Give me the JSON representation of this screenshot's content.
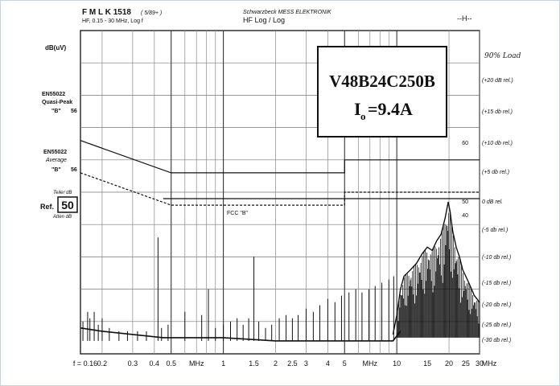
{
  "chart_data": {
    "type": "line",
    "header": {
      "instrument": "F M L K  1518",
      "instrument_note": "( 5/89+ )",
      "range": "HF, 0.15 - 30 MHz, Log f",
      "maker": "Schwarzbeck MESS ELEKTRONIK",
      "mode": "HF Log / Log",
      "corner": "--H--"
    },
    "ylabel": "dB(uV)",
    "title_box": {
      "part": "V48B24C250B",
      "current_prefix": "I",
      "current_sub": "o",
      "current_value": "=9.4A"
    },
    "handwritten_note": "90% Load",
    "ref": {
      "top": "Teiler dB",
      "label": "Ref.",
      "value": "50",
      "bottom": "Atten dB"
    },
    "limit_labels": {
      "qp": [
        "EN55022",
        "Quasi-Peak",
        "\"B\""
      ],
      "qp_value": "56",
      "avg": [
        "EN55022",
        "Average",
        "\"B\""
      ],
      "avg_value": "56",
      "fcc": "FCC \"B\""
    },
    "right_markers": [
      "60",
      "50",
      "40"
    ],
    "right_scale": [
      "(+20 dB rel.)",
      "(+15 db rel.)",
      "(+10 db rel.)",
      "(+5 db rel.)",
      "0 dB rel.",
      "(-5 db rel.)",
      "(-10 db rel.)",
      "(-15 db rel.)",
      "(-20 db rel.)",
      "(-25 db rel.)",
      "(-30 db rel.)"
    ],
    "x_ticks": [
      {
        "f": 0.16,
        "label": "f = 0.16"
      },
      {
        "f": 0.2,
        "label": "0.2"
      },
      {
        "f": 0.3,
        "label": "0.3"
      },
      {
        "f": 0.4,
        "label": "0.4"
      },
      {
        "f": 0.5,
        "label": "0.5"
      },
      {
        "f": 1,
        "label": "1"
      },
      {
        "f": 1.5,
        "label": "1.5"
      },
      {
        "f": 2,
        "label": "2"
      },
      {
        "f": 2.5,
        "label": "2.5"
      },
      {
        "f": 3,
        "label": "3"
      },
      {
        "f": 4,
        "label": "4"
      },
      {
        "f": 5,
        "label": "5"
      },
      {
        "f": 10,
        "label": "10"
      },
      {
        "f": 15,
        "label": "15"
      },
      {
        "f": 20,
        "label": "20"
      },
      {
        "f": 25,
        "label": "25"
      },
      {
        "f": 30,
        "label": "30"
      }
    ],
    "x_unit_labels": [
      {
        "f": 0.7,
        "label": "MHz"
      },
      {
        "f": 7.0,
        "label": "MHz"
      },
      {
        "f": 30,
        "label": "MHz"
      }
    ],
    "xlim": [
      0.15,
      30
    ],
    "ylim": [
      0,
      100
    ],
    "grid": true,
    "limits": [
      {
        "name": "EN55022 Quasi-Peak \"B\"",
        "style": "solid",
        "points": [
          [
            0.15,
            66
          ],
          [
            0.5,
            56
          ],
          [
            5,
            56
          ],
          [
            5,
            60
          ],
          [
            30,
            60
          ]
        ]
      },
      {
        "name": "EN55022 Average \"B\"",
        "style": "dashed",
        "points": [
          [
            0.15,
            56
          ],
          [
            0.5,
            46
          ],
          [
            5,
            46
          ],
          [
            5,
            50
          ],
          [
            30,
            50
          ]
        ]
      },
      {
        "name": "FCC \"B\"",
        "style": "solid",
        "points": [
          [
            0.45,
            48
          ],
          [
            30,
            48
          ]
        ]
      }
    ],
    "spectrum": {
      "floor": [
        [
          0.15,
          8
        ],
        [
          0.2,
          7
        ],
        [
          0.3,
          6
        ],
        [
          0.45,
          5
        ],
        [
          1.0,
          5
        ],
        [
          2.0,
          4
        ],
        [
          5.0,
          4
        ],
        [
          9.5,
          4
        ],
        [
          10.5,
          7
        ]
      ],
      "spikes": [
        [
          0.15,
          12
        ],
        [
          0.155,
          10
        ],
        [
          0.165,
          13
        ],
        [
          0.17,
          11
        ],
        [
          0.18,
          13
        ],
        [
          0.19,
          9
        ],
        [
          0.2,
          11
        ],
        [
          0.22,
          8
        ],
        [
          0.25,
          7
        ],
        [
          0.28,
          7
        ],
        [
          0.32,
          7
        ],
        [
          0.36,
          7
        ],
        [
          0.42,
          36
        ],
        [
          0.44,
          8
        ],
        [
          0.48,
          9
        ],
        [
          0.6,
          13
        ],
        [
          0.75,
          12
        ],
        [
          0.82,
          20
        ],
        [
          0.9,
          8
        ],
        [
          1.0,
          9
        ],
        [
          1.1,
          10
        ],
        [
          1.2,
          11
        ],
        [
          1.3,
          9
        ],
        [
          1.4,
          11
        ],
        [
          1.5,
          30
        ],
        [
          1.6,
          10
        ],
        [
          1.75,
          8
        ],
        [
          1.9,
          9
        ],
        [
          2.1,
          11
        ],
        [
          2.3,
          12
        ],
        [
          2.5,
          11
        ],
        [
          2.7,
          12
        ],
        [
          3.0,
          14
        ],
        [
          3.3,
          13
        ],
        [
          3.6,
          15
        ],
        [
          4.0,
          17
        ],
        [
          4.4,
          16
        ],
        [
          4.8,
          18
        ],
        [
          5.3,
          19
        ],
        [
          5.8,
          20
        ],
        [
          6.3,
          19
        ],
        [
          6.9,
          20
        ],
        [
          7.5,
          21
        ],
        [
          8.2,
          22
        ],
        [
          9.0,
          23
        ],
        [
          9.6,
          24
        ]
      ],
      "envelope": [
        [
          9.5,
          6
        ],
        [
          10,
          12
        ],
        [
          10.5,
          20
        ],
        [
          11,
          24
        ],
        [
          12,
          26
        ],
        [
          13,
          28
        ],
        [
          14,
          31
        ],
        [
          15,
          33
        ],
        [
          16,
          32
        ],
        [
          17,
          35
        ],
        [
          18,
          37
        ],
        [
          19,
          42
        ],
        [
          19.8,
          47
        ],
        [
          20.3,
          44
        ],
        [
          21,
          38
        ],
        [
          22,
          33
        ],
        [
          23,
          30
        ],
        [
          24,
          26
        ],
        [
          25,
          24
        ],
        [
          26,
          22
        ],
        [
          27,
          20
        ],
        [
          28,
          18
        ],
        [
          29,
          17
        ],
        [
          30,
          16
        ]
      ]
    }
  }
}
